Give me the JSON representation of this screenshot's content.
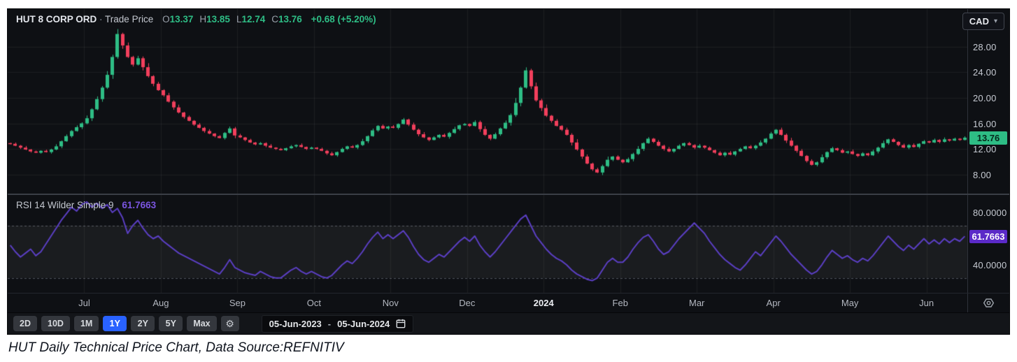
{
  "header": {
    "symbol": "HUT 8 CORP ORD",
    "separator": "·",
    "series_label": "Trade Price",
    "ohlc": [
      {
        "label": "O",
        "value": "13.37"
      },
      {
        "label": "H",
        "value": "13.85"
      },
      {
        "label": "L",
        "value": "12.74"
      },
      {
        "label": "C",
        "value": "13.76"
      }
    ],
    "change": "+0.68 (+5.20%)"
  },
  "currency_selector": {
    "value": "CAD"
  },
  "price_axis": {
    "ticks": [
      {
        "label": "28.00",
        "value": 28
      },
      {
        "label": "24.00",
        "value": 24
      },
      {
        "label": "20.00",
        "value": 20
      },
      {
        "label": "16.00",
        "value": 16
      },
      {
        "label": "12.00",
        "value": 12
      },
      {
        "label": "8.00",
        "value": 8
      }
    ],
    "last_price_badge": {
      "label": "13.76",
      "value": 13.76
    }
  },
  "rsi_pane": {
    "legend": "RSI 14 Wilder Simple 9",
    "current_value_label": "61.7663",
    "ticks": [
      {
        "label": "80.0000",
        "value": 80
      },
      {
        "label": "40.0000",
        "value": 40
      }
    ],
    "badge": {
      "label": "61.7663",
      "value": 61.7663
    }
  },
  "toolbar": {
    "ranges": [
      "2D",
      "10D",
      "1M",
      "1Y",
      "2Y",
      "5Y",
      "Max"
    ],
    "active_range": "1Y",
    "gear_glyph": "⚙",
    "date_from": "05-Jun-2023",
    "date_separator": "-",
    "date_to": "05-Jun-2024"
  },
  "caption": "HUT Daily Technical Price Chart, Data Source:REFNITIV",
  "colors": {
    "up": "#2ebd85",
    "down": "#f23f5c",
    "rsi_line": "#5b3fc4",
    "rsi_badge_bg": "#5b2ac8",
    "price_badge_bg": "#2ebd85",
    "price_badge_text": "#07281c",
    "accent_blue": "#2962ff",
    "grid": "rgba(255,255,255,0.06)",
    "band_fill": "rgba(255,255,255,0.05)",
    "band_line": "rgba(190,196,210,0.38)"
  },
  "chart_data": {
    "type": "candlestick+line",
    "instrument": "HUT 8 CORP ORD",
    "ohlc_today": {
      "open": 13.37,
      "high": 13.85,
      "low": 12.74,
      "close": 13.76,
      "change": 0.68,
      "change_pct": 5.2
    },
    "date_range": [
      "05-Jun-2023",
      "05-Jun-2024"
    ],
    "price_pane": {
      "ylim": [
        5.0,
        33.9
      ],
      "gridline_values": [
        28,
        24,
        20,
        16,
        12,
        8
      ],
      "open_first": 12.9,
      "closes": [
        12.8,
        12.5,
        12.2,
        11.9,
        11.6,
        11.4,
        11.7,
        11.5,
        11.9,
        12.4,
        13.2,
        14.0,
        14.8,
        15.4,
        16.0,
        16.8,
        18.2,
        19.8,
        21.6,
        23.6,
        26.4,
        30.0,
        28.2,
        26.4,
        25.2,
        26.2,
        24.8,
        23.4,
        22.2,
        21.2,
        20.4,
        19.4,
        18.5,
        17.7,
        17.0,
        16.4,
        15.8,
        15.3,
        14.8,
        14.4,
        14.0,
        13.7,
        14.5,
        15.2,
        14.1,
        13.8,
        13.4,
        13.0,
        12.7,
        12.9,
        12.5,
        12.2,
        12.0,
        11.8,
        12.1,
        12.4,
        12.6,
        12.3,
        12.0,
        12.2,
        12.0,
        11.7,
        11.3,
        11.0,
        11.5,
        12.0,
        12.4,
        12.2,
        12.6,
        13.2,
        14.0,
        14.9,
        15.6,
        15.2,
        15.5,
        15.3,
        15.9,
        16.6,
        15.8,
        15.0,
        14.3,
        13.8,
        13.4,
        13.8,
        14.2,
        13.9,
        14.5,
        15.1,
        15.7,
        15.9,
        15.6,
        16.2,
        15.1,
        14.2,
        13.6,
        14.3,
        15.2,
        16.1,
        17.3,
        19.2,
        21.6,
        24.3,
        21.8,
        19.6,
        18.4,
        17.2,
        16.4,
        15.6,
        15.0,
        14.2,
        13.0,
        11.9,
        10.8,
        9.7,
        8.8,
        8.3,
        9.3,
        10.3,
        10.8,
        10.3,
        9.9,
        10.4,
        11.2,
        12.0,
        12.9,
        13.6,
        13.1,
        12.5,
        12.0,
        11.6,
        12.0,
        12.5,
        12.9,
        12.6,
        12.2,
        12.5,
        12.2,
        11.8,
        11.4,
        11.0,
        11.4,
        11.1,
        11.6,
        12.0,
        12.4,
        12.1,
        12.5,
        13.0,
        13.6,
        14.4,
        15.0,
        14.2,
        13.3,
        12.5,
        11.7,
        10.9,
        10.1,
        9.5,
        9.9,
        10.7,
        11.5,
        12.1,
        11.8,
        11.4,
        11.6,
        11.2,
        10.9,
        11.3,
        11.0,
        11.6,
        12.2,
        12.9,
        13.5,
        13.1,
        12.6,
        12.2,
        12.6,
        12.3,
        12.8,
        13.2,
        13.0,
        13.4,
        13.1,
        13.5,
        13.3,
        13.6,
        13.4,
        13.76
      ]
    },
    "rsi_pane": {
      "name": "RSI 14 Wilder Simple 9",
      "ylim": [
        18.7,
        93.3
      ],
      "tick_values": [
        80,
        40
      ],
      "band_levels": [
        70,
        30
      ],
      "values": [
        55,
        50,
        46,
        49,
        52,
        47,
        50,
        56,
        62,
        68,
        74,
        79,
        84,
        81,
        86,
        88,
        84,
        87,
        83,
        86,
        80,
        83,
        76,
        64,
        70,
        74,
        68,
        63,
        60,
        62,
        58,
        55,
        52,
        49,
        47,
        45,
        43,
        41,
        39,
        37,
        35,
        33,
        38,
        44,
        38,
        36,
        34,
        33,
        32,
        35,
        33,
        31,
        30,
        30,
        33,
        36,
        38,
        35,
        33,
        35,
        33,
        31,
        30,
        32,
        36,
        40,
        43,
        41,
        45,
        50,
        56,
        61,
        65,
        60,
        63,
        60,
        63,
        66,
        61,
        54,
        48,
        44,
        42,
        45,
        48,
        46,
        50,
        54,
        58,
        61,
        58,
        62,
        55,
        50,
        46,
        50,
        55,
        60,
        65,
        70,
        75,
        78,
        70,
        62,
        57,
        52,
        48,
        45,
        43,
        40,
        36,
        33,
        31,
        29,
        28,
        30,
        36,
        42,
        45,
        42,
        42,
        46,
        52,
        57,
        61,
        63,
        58,
        52,
        48,
        50,
        55,
        60,
        64,
        68,
        72,
        68,
        64,
        58,
        53,
        48,
        44,
        41,
        38,
        36,
        40,
        45,
        50,
        47,
        52,
        57,
        62,
        58,
        53,
        48,
        44,
        40,
        36,
        33,
        35,
        40,
        46,
        51,
        48,
        45,
        47,
        44,
        42,
        45,
        43,
        47,
        52,
        57,
        62,
        58,
        54,
        51,
        55,
        52,
        56,
        60,
        56,
        59,
        56,
        60,
        57,
        60,
        58,
        61.8
      ]
    },
    "x_axis": {
      "month_labels": [
        {
          "label": "Jul",
          "index": 15
        },
        {
          "label": "Aug",
          "index": 30
        },
        {
          "label": "Sep",
          "index": 45
        },
        {
          "label": "Oct",
          "index": 60
        },
        {
          "label": "Nov",
          "index": 75
        },
        {
          "label": "Dec",
          "index": 90
        },
        {
          "label": "2024",
          "index": 105,
          "emphasis": true
        },
        {
          "label": "Feb",
          "index": 120
        },
        {
          "label": "Mar",
          "index": 135
        },
        {
          "label": "Apr",
          "index": 150
        },
        {
          "label": "May",
          "index": 165
        },
        {
          "label": "Jun",
          "index": 180
        }
      ]
    }
  }
}
